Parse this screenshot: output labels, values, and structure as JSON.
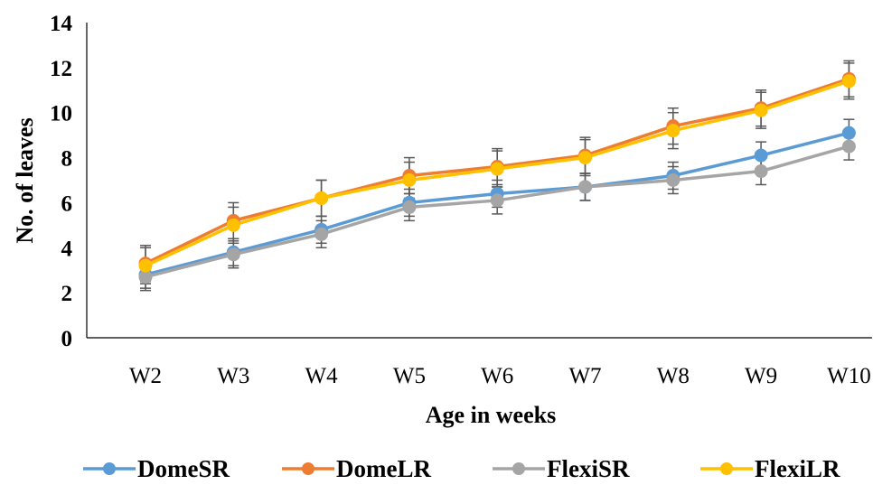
{
  "chart_data": {
    "type": "line",
    "title": "",
    "xlabel": "Age in weeks",
    "ylabel": "No. of leaves",
    "ylim": [
      0,
      14
    ],
    "yticks": [
      "0",
      "2",
      "4",
      "6",
      "8",
      "10",
      "12",
      "14"
    ],
    "categories": [
      "W2",
      "W3",
      "W4",
      "W5",
      "W6",
      "W7",
      "W8",
      "W9",
      "W10"
    ],
    "grid": false,
    "legend": "bottom",
    "error_bars": true,
    "series": [
      {
        "name": "DomeSR",
        "color": "#5B9BD5",
        "values": [
          2.8,
          3.8,
          4.8,
          6.0,
          6.4,
          6.7,
          7.2,
          8.1,
          9.1
        ],
        "errors": [
          0.6,
          0.6,
          0.6,
          0.6,
          0.6,
          0.6,
          0.6,
          0.6,
          0.6
        ]
      },
      {
        "name": "DomeLR",
        "color": "#ED7D31",
        "values": [
          3.3,
          5.2,
          6.2,
          7.2,
          7.6,
          8.1,
          9.4,
          10.2,
          11.5
        ],
        "errors": [
          0.8,
          0.8,
          0.8,
          0.8,
          0.8,
          0.8,
          0.8,
          0.8,
          0.8
        ]
      },
      {
        "name": "FlexiSR",
        "color": "#A5A5A5",
        "values": [
          2.7,
          3.7,
          4.6,
          5.8,
          6.1,
          6.7,
          7.0,
          7.4,
          8.5
        ],
        "errors": [
          0.6,
          0.6,
          0.6,
          0.6,
          0.6,
          0.6,
          0.6,
          0.6,
          0.6
        ]
      },
      {
        "name": "FlexiLR",
        "color": "#FFC000",
        "values": [
          3.2,
          5.0,
          6.2,
          7.0,
          7.5,
          8.0,
          9.2,
          10.1,
          11.4
        ],
        "errors": [
          0.8,
          0.8,
          0.8,
          0.8,
          0.8,
          0.8,
          0.8,
          0.8,
          0.8
        ]
      }
    ]
  }
}
